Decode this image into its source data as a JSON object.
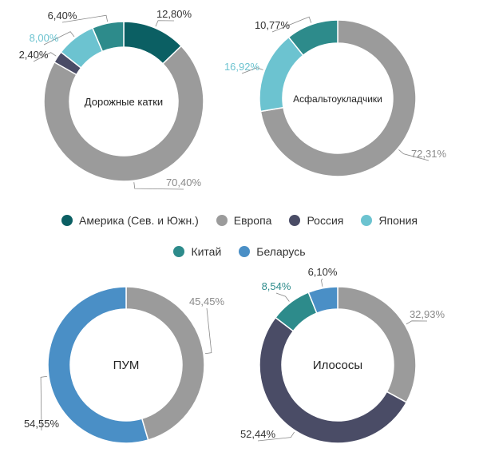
{
  "colors": {
    "america": "#0b5f63",
    "europe": "#9b9b9b",
    "russia": "#4a4c66",
    "japan": "#6cc3d0",
    "china": "#2d8b8b",
    "belarus": "#4a8fc6"
  },
  "legend": [
    {
      "label": "Америка (Сев. и Южн.)",
      "color": "#0b5f63"
    },
    {
      "label": "Европа",
      "color": "#9b9b9b"
    },
    {
      "label": "Россия",
      "color": "#4a4c66"
    },
    {
      "label": "Япония",
      "color": "#6cc3d0"
    },
    {
      "label": "Китай",
      "color": "#2d8b8b"
    },
    {
      "label": "Беларусь",
      "color": "#4a8fc6"
    }
  ],
  "chart_data": [
    {
      "type": "pie",
      "title": "Дорожные катки",
      "slices": [
        {
          "label": "12,80%",
          "value": 12.8,
          "color": "#0b5f63"
        },
        {
          "label": "70,40%",
          "value": 70.4,
          "color": "#9b9b9b"
        },
        {
          "label": "2,40%",
          "value": 2.4,
          "color": "#4a4c66"
        },
        {
          "label": "8,00%",
          "value": 8.0,
          "color": "#6cc3d0"
        },
        {
          "label": "6,40%",
          "value": 6.4,
          "color": "#2d8b8b"
        }
      ]
    },
    {
      "type": "pie",
      "title": "Асфальтоукладчики",
      "slices": [
        {
          "label": "72,31%",
          "value": 72.31,
          "color": "#9b9b9b"
        },
        {
          "label": "16,92%",
          "value": 16.92,
          "color": "#6cc3d0"
        },
        {
          "label": "10,77%",
          "value": 10.77,
          "color": "#2d8b8b"
        }
      ]
    },
    {
      "type": "pie",
      "title": "ПУМ",
      "slices": [
        {
          "label": "45,45%",
          "value": 45.45,
          "color": "#9b9b9b"
        },
        {
          "label": "54,55%",
          "value": 54.55,
          "color": "#4a8fc6"
        }
      ]
    },
    {
      "type": "pie",
      "title": "Илососы",
      "slices": [
        {
          "label": "32,93%",
          "value": 32.93,
          "color": "#9b9b9b"
        },
        {
          "label": "52,44%",
          "value": 52.44,
          "color": "#4a4c66"
        },
        {
          "label": "8,54%",
          "value": 8.54,
          "color": "#2d8b8b"
        },
        {
          "label": "6,10%",
          "value": 6.1,
          "color": "#4a8fc6"
        }
      ]
    }
  ]
}
